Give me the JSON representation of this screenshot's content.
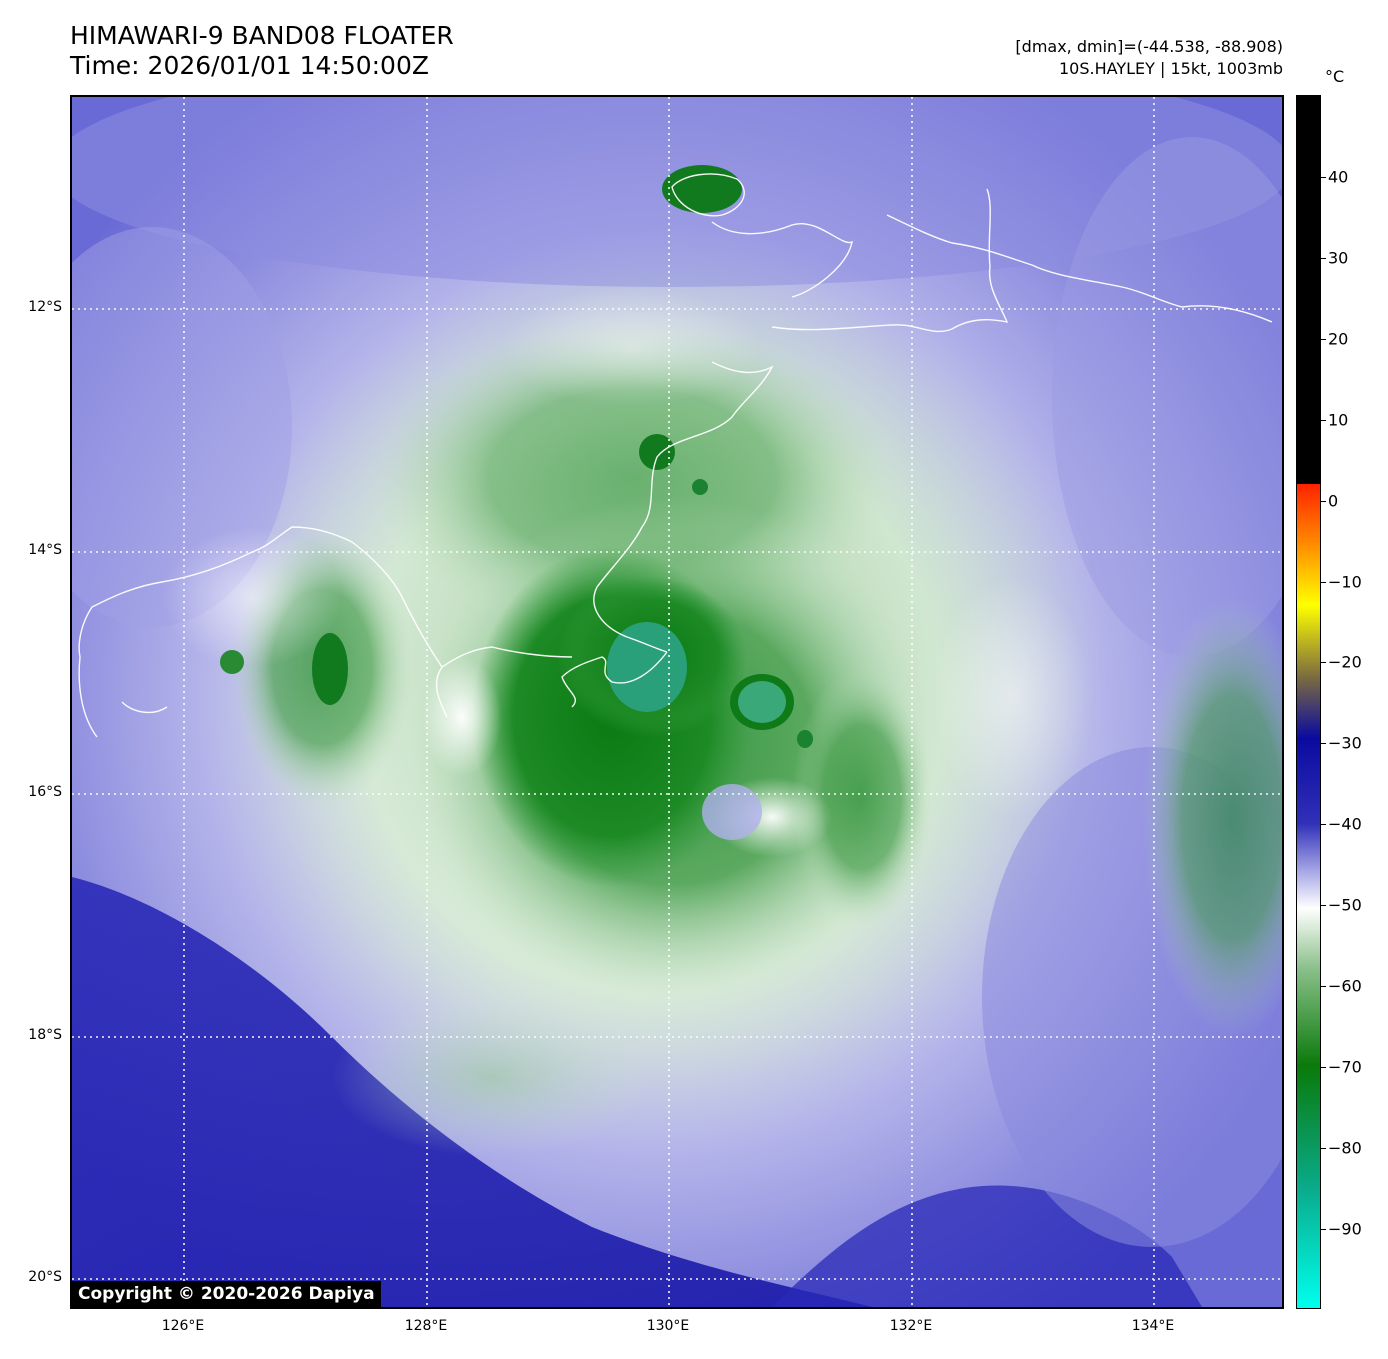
{
  "header": {
    "title_line1": "HIMAWARI-9 BAND08 FLOATER",
    "title_line2": "Time: 2026/01/01 14:50:00Z",
    "info_line1": "[dmax, dmin]=(-44.538, -88.908)",
    "info_line2": "10S.HAYLEY | 15kt, 1003mb"
  },
  "colorbar": {
    "unit": "°C",
    "ticks": [
      "40",
      "30",
      "20",
      "10",
      "0",
      "−10",
      "−20",
      "−30",
      "−40",
      "−50",
      "−60",
      "−70",
      "−80",
      "−90"
    ],
    "colors": {
      "black": "#000000",
      "red": "#ff2200",
      "orange": "#ff8c00",
      "yellow": "#ffff00",
      "olive": "#7a6a40",
      "darkblue": "#0a0aa0",
      "blue": "#3030b8",
      "lavender": "#a8a8e6",
      "white": "#ffffff",
      "lightgreen": "#8ac08a",
      "green": "#0a7a0a",
      "teal": "#0aaa8a",
      "cyan": "#00ffee"
    }
  },
  "map": {
    "lat_labels": [
      "12°S",
      "14°S",
      "16°S",
      "18°S",
      "20°S"
    ],
    "lon_labels": [
      "126°E",
      "128°E",
      "130°E",
      "132°E",
      "134°E"
    ],
    "storm_eye_color": "#3aa878"
  },
  "footer": {
    "copyright": "Copyright © 2020-2026 Dapiya"
  }
}
